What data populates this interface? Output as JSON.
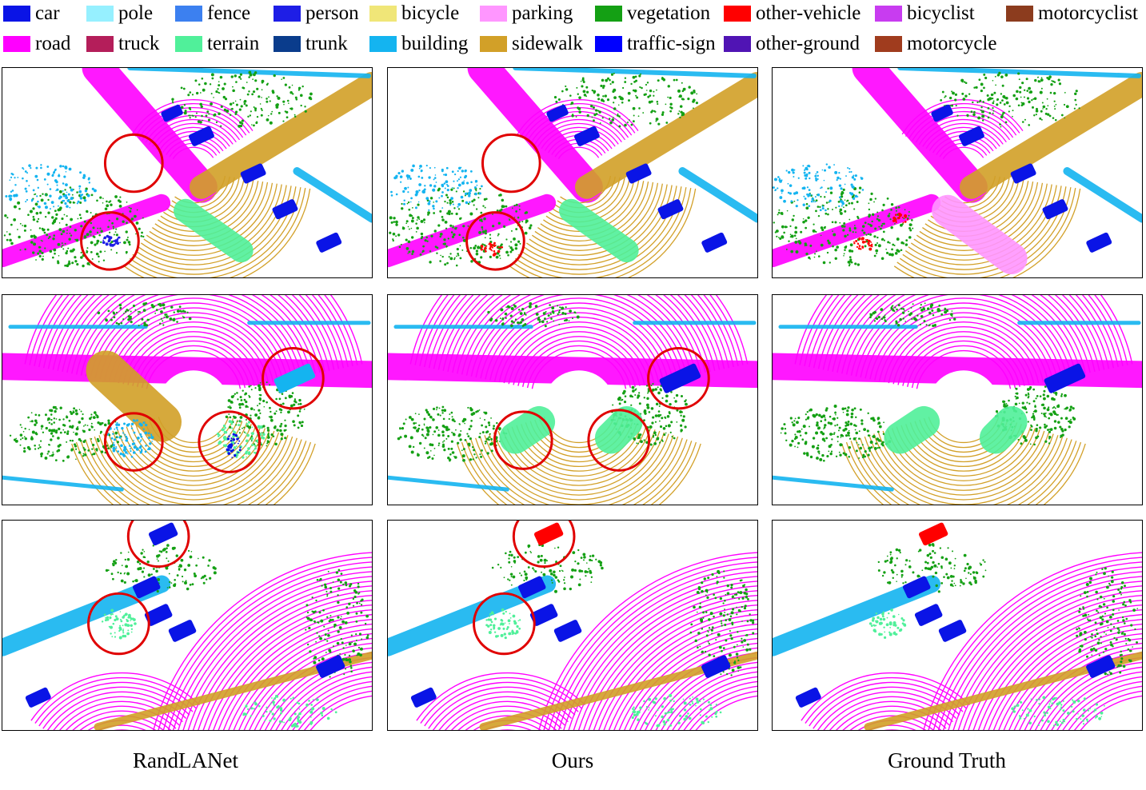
{
  "legend": [
    {
      "label": "car",
      "color": "#0a14e6"
    },
    {
      "label": "pole",
      "color": "#96f0ff"
    },
    {
      "label": "fence",
      "color": "#3c80f0"
    },
    {
      "label": "person",
      "color": "#1e1ee6"
    },
    {
      "label": "bicycle",
      "color": "#f0e678"
    },
    {
      "label": "parking",
      "color": "#ff96ff"
    },
    {
      "label": "vegetation",
      "color": "#14a014"
    },
    {
      "label": "other-vehicle",
      "color": "#ff0000"
    },
    {
      "label": "bicyclist",
      "color": "#c83cf0"
    },
    {
      "label": "motorcyclist",
      "color": "#8c3c1e"
    },
    {
      "label": "road",
      "color": "#ff00ff"
    },
    {
      "label": "truck",
      "color": "#b41e5a"
    },
    {
      "label": "terrain",
      "color": "#50f09a"
    },
    {
      "label": "trunk",
      "color": "#0a3c8c"
    },
    {
      "label": "building",
      "color": "#14b4f0"
    },
    {
      "label": "sidewalk",
      "color": "#d2a028"
    },
    {
      "label": "traffic-sign",
      "color": "#0000ff"
    },
    {
      "label": "other-ground",
      "color": "#5014b4"
    },
    {
      "label": "motorcycle",
      "color": "#a03c1e"
    }
  ],
  "columns": [
    {
      "caption": "RandLANet"
    },
    {
      "caption": "Ours"
    },
    {
      "caption": "Ground Truth"
    }
  ],
  "highlight_color": "#e00000"
}
